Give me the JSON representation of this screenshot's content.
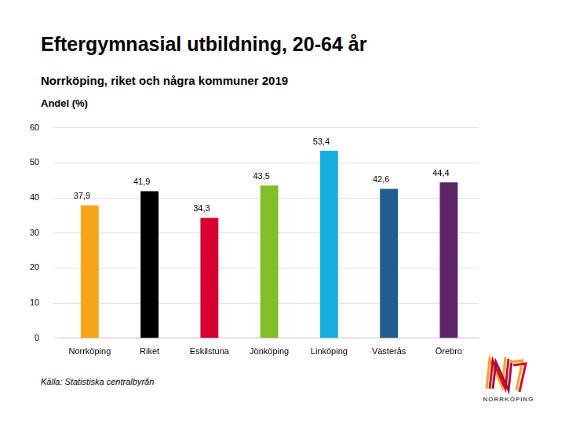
{
  "chart_data": {
    "type": "bar",
    "title": "Eftergymnasial utbildning, 20-64 år",
    "subtitle": "Norrköping, riket och några kommuner 2019",
    "y_label": "Andel (%)",
    "categories": [
      "Norrköping",
      "Riket",
      "Eskilstuna",
      "Jönköping",
      "Linköping",
      "Västerås",
      "Örebro"
    ],
    "values": [
      37.9,
      41.9,
      34.3,
      43.5,
      53.4,
      42.6,
      44.4
    ],
    "value_labels": [
      "37,9",
      "41,9",
      "34,3",
      "43,5",
      "53,4",
      "42,6",
      "44,4"
    ],
    "colors": [
      "#f9a51a",
      "#000000",
      "#d6002f",
      "#84bd2a",
      "#16afe0",
      "#215e8e",
      "#5b2467"
    ],
    "ylim": [
      0,
      60
    ],
    "yticks": [
      0,
      10,
      20,
      30,
      40,
      50,
      60
    ],
    "grid": true,
    "data_labels": true,
    "annotations": [
      "Källa: Statistiska centralbyrån",
      "NORRKÖPING"
    ]
  }
}
